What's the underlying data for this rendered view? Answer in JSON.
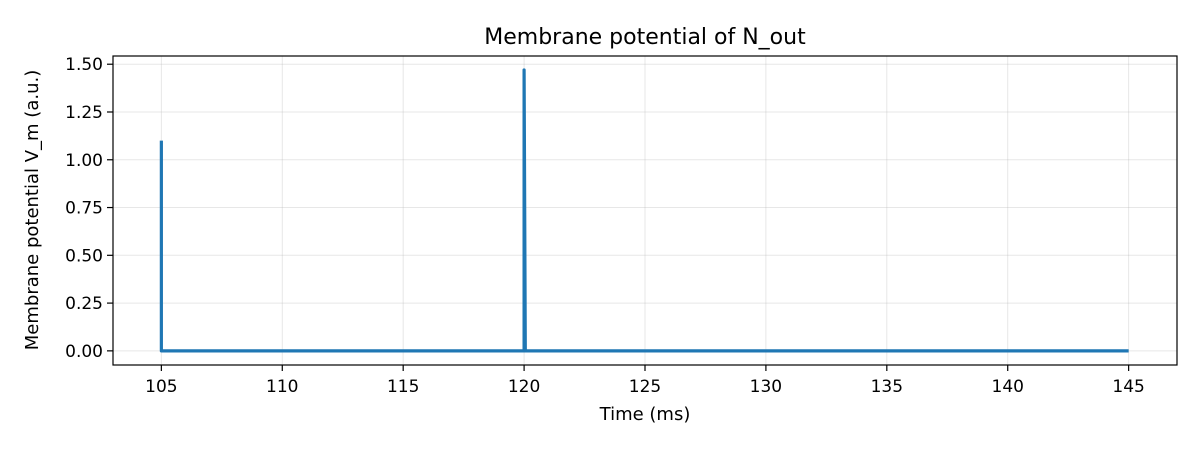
{
  "chart_data": {
    "type": "line",
    "title": "Membrane potential of N_out",
    "xlabel": "Time (ms)",
    "ylabel": "Membrane potential V_m (a.u.)",
    "xlim": [
      103,
      147
    ],
    "ylim": [
      -0.074,
      1.543
    ],
    "xticks": [
      105,
      110,
      115,
      120,
      125,
      130,
      135,
      140,
      145
    ],
    "xtick_labels": [
      "105",
      "110",
      "115",
      "120",
      "125",
      "130",
      "135",
      "140",
      "145"
    ],
    "yticks": [
      0.0,
      0.25,
      0.5,
      0.75,
      1.0,
      1.25,
      1.5
    ],
    "ytick_labels": [
      "0.00",
      "0.25",
      "0.50",
      "0.75",
      "1.00",
      "1.25",
      "1.50"
    ],
    "grid": true,
    "legend": "none",
    "series": [
      {
        "color": "#1f77b4",
        "x": [
          105,
          105,
          105.05,
          119.95,
          120,
          120,
          120.05,
          145
        ],
        "y": [
          1.1,
          0.0,
          0.0,
          0.0,
          0.0,
          1.47,
          0.0,
          0.0
        ]
      }
    ]
  }
}
